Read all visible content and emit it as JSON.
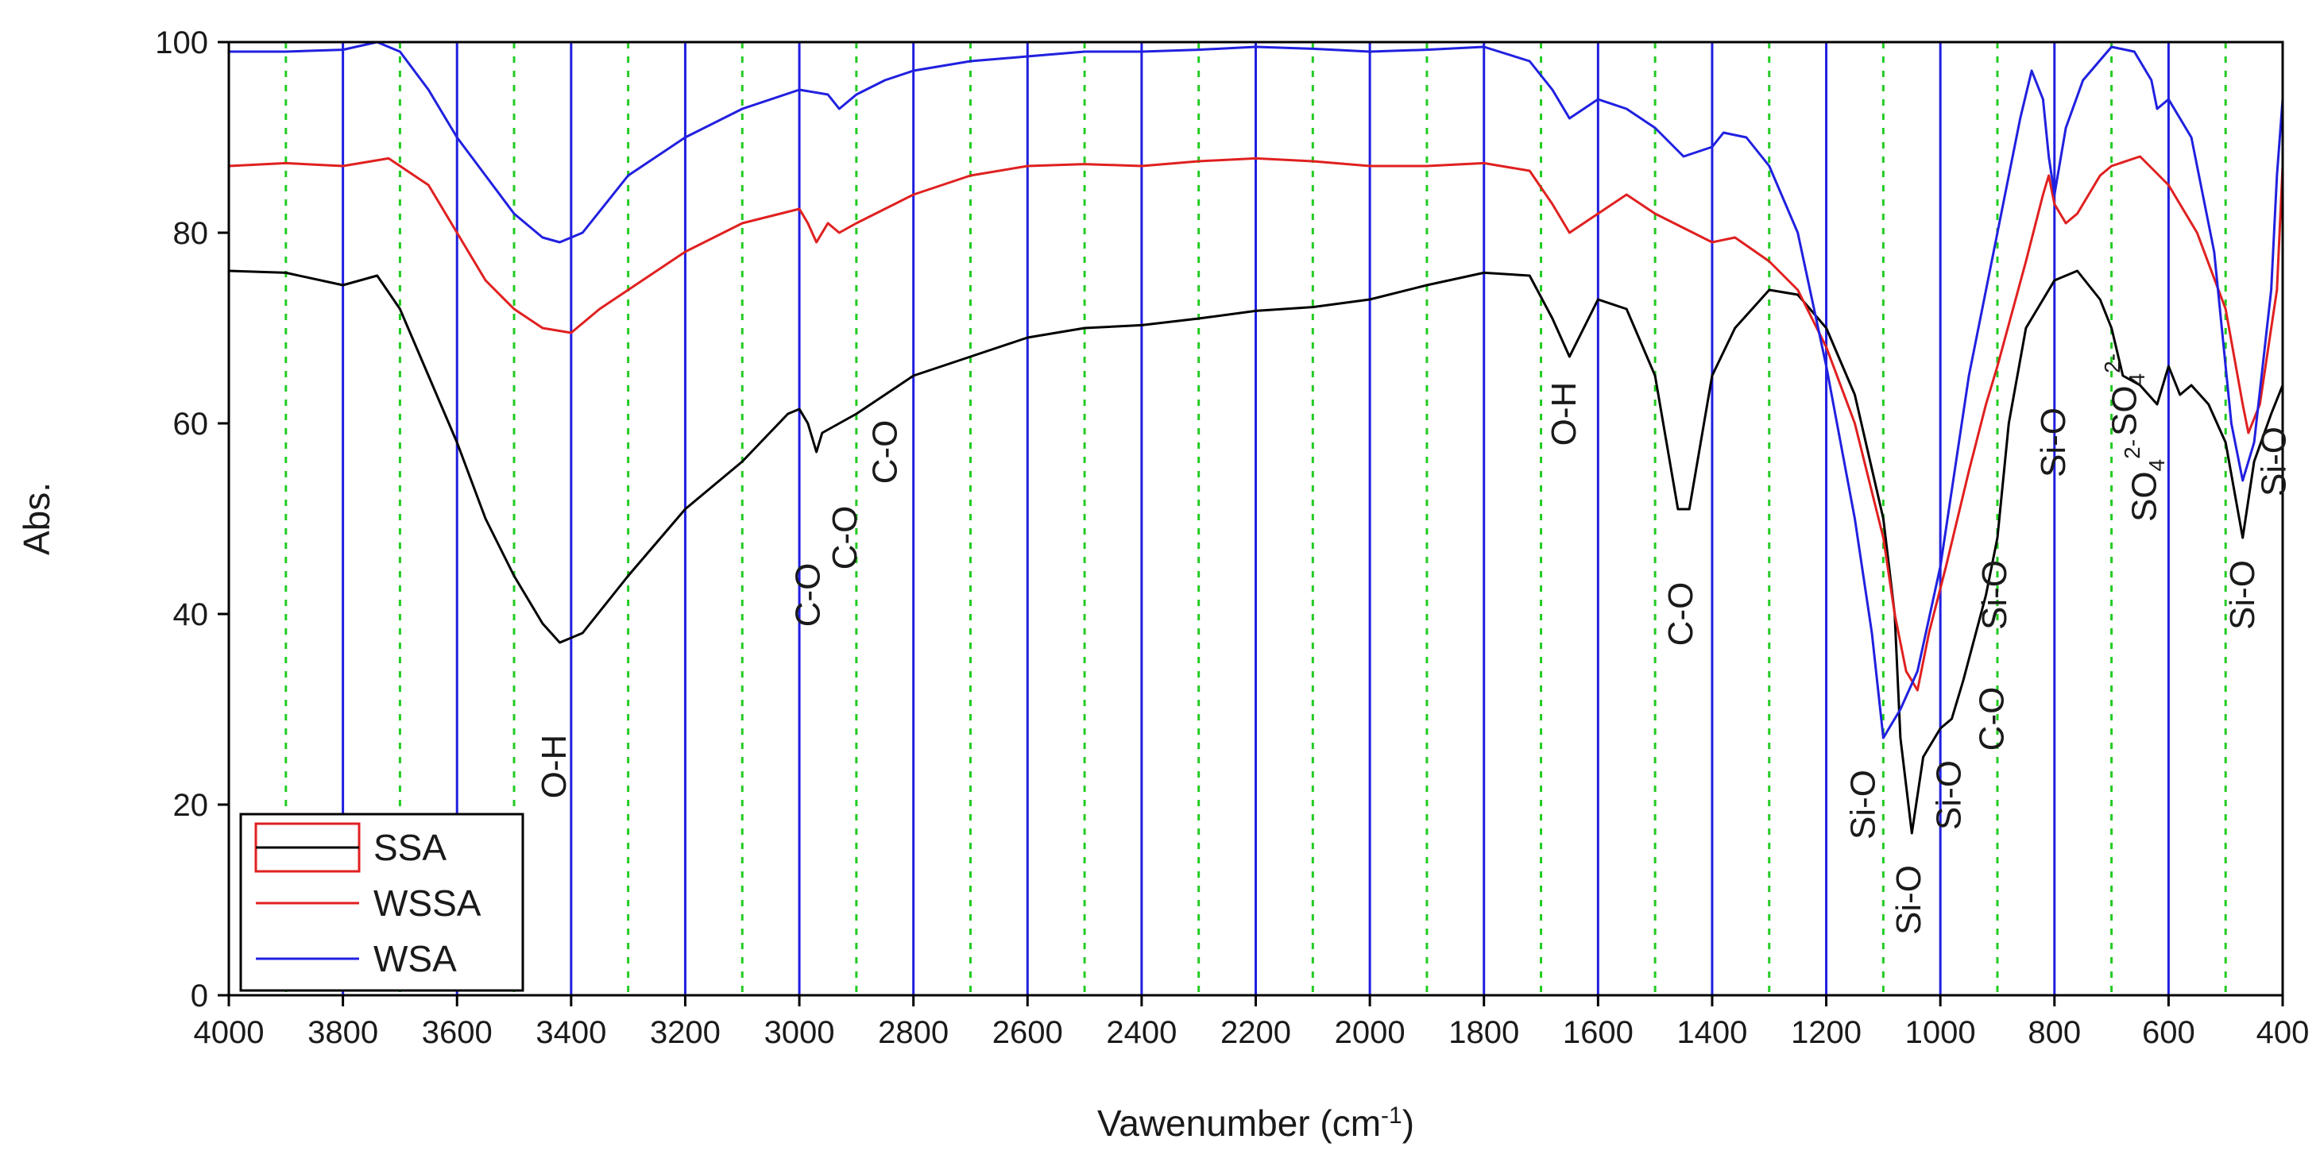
{
  "chart_data": {
    "type": "line",
    "title": "",
    "xlabel": "Vawenumber (cm",
    "xlabel_superscript": "-1",
    "xlabel_suffix": ")",
    "ylabel": "Abs.",
    "xlim": [
      4000,
      400
    ],
    "ylim": [
      0,
      100
    ],
    "x_reversed": true,
    "x_ticks": [
      4000,
      3800,
      3600,
      3400,
      3200,
      3000,
      2800,
      2600,
      2400,
      2200,
      2000,
      1800,
      1600,
      1400,
      1200,
      1000,
      800,
      600,
      400
    ],
    "y_ticks": [
      0,
      20,
      40,
      60,
      80,
      100
    ],
    "grid_major": {
      "values": [
        3800,
        3600,
        3400,
        3200,
        3000,
        2800,
        2600,
        2400,
        2200,
        2000,
        1800,
        1600,
        1400,
        1200,
        1000,
        800,
        600
      ],
      "color": "#1f1fe0",
      "style": "solid"
    },
    "grid_minor": {
      "values": [
        3900,
        3700,
        3500,
        3300,
        3100,
        2900,
        2700,
        2500,
        2300,
        2100,
        1900,
        1700,
        1500,
        1300,
        1100,
        900,
        700,
        500
      ],
      "color": "#22cc22",
      "style": "dotted"
    },
    "legend": {
      "placement": "bottom-left"
    },
    "series": [
      {
        "name": "SSA",
        "color": "#000000",
        "points": [
          [
            4000,
            76
          ],
          [
            3900,
            75.8
          ],
          [
            3800,
            74.5
          ],
          [
            3740,
            75.5
          ],
          [
            3700,
            72
          ],
          [
            3650,
            65
          ],
          [
            3600,
            58
          ],
          [
            3550,
            50
          ],
          [
            3500,
            44
          ],
          [
            3450,
            39
          ],
          [
            3420,
            37
          ],
          [
            3380,
            38
          ],
          [
            3300,
            44
          ],
          [
            3200,
            51
          ],
          [
            3100,
            56
          ],
          [
            3020,
            61
          ],
          [
            3000,
            61.5
          ],
          [
            2985,
            60
          ],
          [
            2970,
            57
          ],
          [
            2960,
            59
          ],
          [
            2930,
            60
          ],
          [
            2900,
            61
          ],
          [
            2850,
            63
          ],
          [
            2800,
            65
          ],
          [
            2700,
            67
          ],
          [
            2600,
            69
          ],
          [
            2500,
            70
          ],
          [
            2400,
            70.3
          ],
          [
            2300,
            71
          ],
          [
            2200,
            71.8
          ],
          [
            2100,
            72.2
          ],
          [
            2000,
            73
          ],
          [
            1900,
            74.5
          ],
          [
            1800,
            75.8
          ],
          [
            1720,
            75.5
          ],
          [
            1680,
            71
          ],
          [
            1650,
            67
          ],
          [
            1600,
            73
          ],
          [
            1550,
            72
          ],
          [
            1500,
            65
          ],
          [
            1460,
            51
          ],
          [
            1440,
            51
          ],
          [
            1400,
            65
          ],
          [
            1360,
            70
          ],
          [
            1300,
            74
          ],
          [
            1250,
            73.5
          ],
          [
            1200,
            70
          ],
          [
            1150,
            63
          ],
          [
            1100,
            50
          ],
          [
            1080,
            40
          ],
          [
            1070,
            27
          ],
          [
            1050,
            17
          ],
          [
            1030,
            25
          ],
          [
            1000,
            28
          ],
          [
            980,
            29
          ],
          [
            960,
            33
          ],
          [
            920,
            42
          ],
          [
            900,
            48
          ],
          [
            880,
            60
          ],
          [
            850,
            70
          ],
          [
            800,
            75
          ],
          [
            760,
            76
          ],
          [
            720,
            73
          ],
          [
            700,
            70
          ],
          [
            680,
            65
          ],
          [
            650,
            64
          ],
          [
            620,
            62
          ],
          [
            600,
            66
          ],
          [
            580,
            63
          ],
          [
            560,
            64
          ],
          [
            530,
            62
          ],
          [
            500,
            58
          ],
          [
            470,
            48
          ],
          [
            450,
            56
          ],
          [
            420,
            61
          ],
          [
            400,
            64
          ]
        ]
      },
      {
        "name": "WSSA",
        "color": "#e02020",
        "points": [
          [
            4000,
            87
          ],
          [
            3900,
            87.3
          ],
          [
            3800,
            87
          ],
          [
            3720,
            87.8
          ],
          [
            3650,
            85
          ],
          [
            3600,
            80
          ],
          [
            3550,
            75
          ],
          [
            3500,
            72
          ],
          [
            3450,
            70
          ],
          [
            3400,
            69.5
          ],
          [
            3350,
            72
          ],
          [
            3300,
            74
          ],
          [
            3200,
            78
          ],
          [
            3100,
            81
          ],
          [
            3000,
            82.5
          ],
          [
            2985,
            81
          ],
          [
            2970,
            79
          ],
          [
            2950,
            81
          ],
          [
            2930,
            80
          ],
          [
            2900,
            81
          ],
          [
            2850,
            82.5
          ],
          [
            2800,
            84
          ],
          [
            2700,
            86
          ],
          [
            2600,
            87
          ],
          [
            2500,
            87.2
          ],
          [
            2400,
            87
          ],
          [
            2300,
            87.5
          ],
          [
            2200,
            87.8
          ],
          [
            2100,
            87.5
          ],
          [
            2000,
            87
          ],
          [
            1900,
            87
          ],
          [
            1800,
            87.3
          ],
          [
            1720,
            86.5
          ],
          [
            1680,
            83
          ],
          [
            1650,
            80
          ],
          [
            1600,
            82
          ],
          [
            1550,
            84
          ],
          [
            1500,
            82
          ],
          [
            1450,
            80.5
          ],
          [
            1400,
            79
          ],
          [
            1360,
            79.5
          ],
          [
            1300,
            77
          ],
          [
            1250,
            74
          ],
          [
            1200,
            68
          ],
          [
            1150,
            60
          ],
          [
            1100,
            48
          ],
          [
            1080,
            40
          ],
          [
            1060,
            34
          ],
          [
            1040,
            32
          ],
          [
            1020,
            38
          ],
          [
            990,
            45
          ],
          [
            950,
            55
          ],
          [
            920,
            62
          ],
          [
            900,
            66
          ],
          [
            850,
            77
          ],
          [
            820,
            84
          ],
          [
            810,
            86
          ],
          [
            800,
            83
          ],
          [
            780,
            81
          ],
          [
            760,
            82
          ],
          [
            720,
            86
          ],
          [
            700,
            87
          ],
          [
            650,
            88
          ],
          [
            600,
            85
          ],
          [
            550,
            80
          ],
          [
            500,
            72
          ],
          [
            470,
            62
          ],
          [
            460,
            59
          ],
          [
            440,
            62
          ],
          [
            420,
            70
          ],
          [
            410,
            74
          ],
          [
            400,
            87
          ]
        ]
      },
      {
        "name": "WSA",
        "color": "#2020e0",
        "points": [
          [
            4000,
            99
          ],
          [
            3900,
            99
          ],
          [
            3800,
            99.2
          ],
          [
            3740,
            100
          ],
          [
            3700,
            99
          ],
          [
            3650,
            95
          ],
          [
            3600,
            90
          ],
          [
            3550,
            86
          ],
          [
            3500,
            82
          ],
          [
            3450,
            79.5
          ],
          [
            3420,
            79
          ],
          [
            3380,
            80
          ],
          [
            3300,
            86
          ],
          [
            3200,
            90
          ],
          [
            3100,
            93
          ],
          [
            3000,
            95
          ],
          [
            2950,
            94.5
          ],
          [
            2930,
            93
          ],
          [
            2900,
            94.5
          ],
          [
            2850,
            96
          ],
          [
            2800,
            97
          ],
          [
            2700,
            98
          ],
          [
            2600,
            98.5
          ],
          [
            2500,
            99
          ],
          [
            2400,
            99
          ],
          [
            2300,
            99.2
          ],
          [
            2200,
            99.5
          ],
          [
            2100,
            99.3
          ],
          [
            2000,
            99
          ],
          [
            1900,
            99.2
          ],
          [
            1800,
            99.5
          ],
          [
            1720,
            98
          ],
          [
            1680,
            95
          ],
          [
            1650,
            92
          ],
          [
            1600,
            94
          ],
          [
            1550,
            93
          ],
          [
            1500,
            91
          ],
          [
            1450,
            88
          ],
          [
            1400,
            89
          ],
          [
            1380,
            90.5
          ],
          [
            1340,
            90
          ],
          [
            1300,
            87
          ],
          [
            1250,
            80
          ],
          [
            1200,
            66
          ],
          [
            1150,
            50
          ],
          [
            1120,
            38
          ],
          [
            1100,
            27
          ],
          [
            1090,
            28
          ],
          [
            1070,
            30
          ],
          [
            1040,
            34
          ],
          [
            1000,
            45
          ],
          [
            950,
            65
          ],
          [
            900,
            80
          ],
          [
            860,
            92
          ],
          [
            840,
            97
          ],
          [
            820,
            94
          ],
          [
            810,
            88
          ],
          [
            800,
            84
          ],
          [
            780,
            91
          ],
          [
            750,
            96
          ],
          [
            700,
            99.5
          ],
          [
            660,
            99
          ],
          [
            630,
            96
          ],
          [
            620,
            93
          ],
          [
            600,
            94
          ],
          [
            560,
            90
          ],
          [
            520,
            78
          ],
          [
            490,
            60
          ],
          [
            470,
            54
          ],
          [
            450,
            58
          ],
          [
            420,
            74
          ],
          [
            410,
            86
          ],
          [
            400,
            94
          ]
        ]
      }
    ],
    "annotations": [
      {
        "text": "O-H",
        "x": 3430,
        "y": 24
      },
      {
        "text": "C-O",
        "x": 2985,
        "y": 42
      },
      {
        "text": "C-O",
        "x": 2920,
        "y": 48
      },
      {
        "text": "C-O",
        "x": 2850,
        "y": 57
      },
      {
        "text": "O-H",
        "x": 1660,
        "y": 61
      },
      {
        "text": "C-O",
        "x": 1455,
        "y": 40
      },
      {
        "text": "Si-O",
        "x": 1135,
        "y": 20
      },
      {
        "text": "Si-O",
        "x": 1055,
        "y": 10
      },
      {
        "text": "Si-O",
        "x": 985,
        "y": 21
      },
      {
        "text": "C-O",
        "x": 910,
        "y": 29
      },
      {
        "text": "Si-O",
        "x": 905,
        "y": 42
      },
      {
        "text": "Si-O",
        "x": 802,
        "y": 58
      },
      {
        "text": "SO",
        "x": 677,
        "y": 63
      },
      {
        "text": "SO",
        "x": 642,
        "y": 54
      },
      {
        "text": "Si-O",
        "x": 470,
        "y": 42
      },
      {
        "text": "Si-O",
        "x": 415,
        "y": 56
      }
    ],
    "so4_charge": "2-",
    "so4_subscript": "4"
  }
}
